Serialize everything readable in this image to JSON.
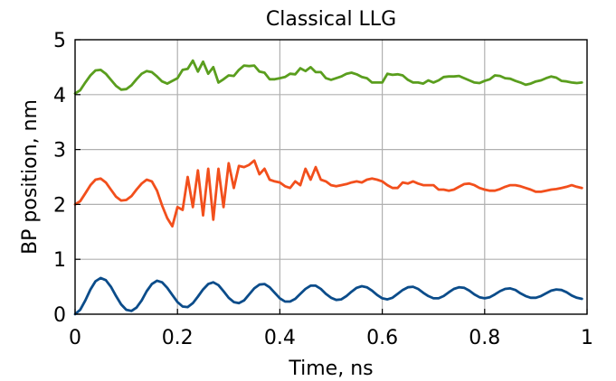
{
  "chart_data": {
    "type": "line",
    "title": "Classical LLG",
    "xlabel": "Time, ns",
    "ylabel": "BP position, nm",
    "xlim": [
      0,
      1
    ],
    "ylim": [
      0,
      5
    ],
    "xticks": [
      0,
      0.2,
      0.4,
      0.6,
      0.8,
      1
    ],
    "xtick_labels": [
      "0",
      "0.2",
      "0.4",
      "0.6",
      "0.8",
      "1"
    ],
    "yticks": [
      0,
      1,
      2,
      3,
      4,
      5
    ],
    "ytick_labels": [
      "0",
      "1",
      "2",
      "3",
      "4",
      "5"
    ],
    "grid": true,
    "series": [
      {
        "color": "#5a9e1e",
        "x": [
          0,
          0.01,
          0.02,
          0.03,
          0.04,
          0.05,
          0.06,
          0.07,
          0.08,
          0.09,
          0.1,
          0.11,
          0.12,
          0.13,
          0.14,
          0.15,
          0.16,
          0.17,
          0.18,
          0.19,
          0.2,
          0.21,
          0.22,
          0.23,
          0.24,
          0.25,
          0.26,
          0.27,
          0.28,
          0.29,
          0.3,
          0.31,
          0.32,
          0.33,
          0.34,
          0.35,
          0.36,
          0.37,
          0.38,
          0.39,
          0.4,
          0.41,
          0.42,
          0.43,
          0.44,
          0.45,
          0.46,
          0.47,
          0.48,
          0.49,
          0.5,
          0.51,
          0.52,
          0.53,
          0.54,
          0.55,
          0.56,
          0.57,
          0.58,
          0.59,
          0.6,
          0.61,
          0.62,
          0.63,
          0.64,
          0.65,
          0.66,
          0.67,
          0.68,
          0.69,
          0.7,
          0.71,
          0.72,
          0.73,
          0.74,
          0.75,
          0.76,
          0.77,
          0.78,
          0.79,
          0.8,
          0.81,
          0.82,
          0.83,
          0.84,
          0.85,
          0.86,
          0.87,
          0.88,
          0.89,
          0.9,
          0.91,
          0.92,
          0.93,
          0.94,
          0.95,
          0.96,
          0.97,
          0.98,
          0.99
        ],
        "y": [
          4.02,
          4.08,
          4.22,
          4.35,
          4.44,
          4.45,
          4.38,
          4.27,
          4.16,
          4.09,
          4.1,
          4.17,
          4.28,
          4.38,
          4.43,
          4.41,
          4.33,
          4.24,
          4.2,
          4.25,
          4.3,
          4.45,
          4.47,
          4.62,
          4.42,
          4.6,
          4.38,
          4.5,
          4.22,
          4.28,
          4.35,
          4.34,
          4.45,
          4.53,
          4.52,
          4.53,
          4.42,
          4.4,
          4.28,
          4.28,
          4.3,
          4.32,
          4.38,
          4.37,
          4.48,
          4.43,
          4.5,
          4.41,
          4.41,
          4.3,
          4.27,
          4.3,
          4.33,
          4.38,
          4.4,
          4.37,
          4.32,
          4.3,
          4.22,
          4.22,
          4.22,
          4.38,
          4.36,
          4.37,
          4.35,
          4.27,
          4.22,
          4.22,
          4.2,
          4.26,
          4.22,
          4.26,
          4.32,
          4.33,
          4.33,
          4.34,
          4.3,
          4.26,
          4.22,
          4.21,
          4.25,
          4.28,
          4.35,
          4.34,
          4.3,
          4.29,
          4.25,
          4.22,
          4.18,
          4.2,
          4.24,
          4.26,
          4.3,
          4.33,
          4.31,
          4.25,
          4.24,
          4.22,
          4.21,
          4.22
        ]
      },
      {
        "color": "#f24f1c",
        "x": [
          0,
          0.01,
          0.02,
          0.03,
          0.04,
          0.05,
          0.06,
          0.07,
          0.08,
          0.09,
          0.1,
          0.11,
          0.12,
          0.13,
          0.14,
          0.15,
          0.16,
          0.17,
          0.18,
          0.19,
          0.2,
          0.21,
          0.22,
          0.23,
          0.24,
          0.25,
          0.26,
          0.27,
          0.28,
          0.29,
          0.3,
          0.31,
          0.32,
          0.33,
          0.34,
          0.35,
          0.36,
          0.37,
          0.38,
          0.39,
          0.4,
          0.41,
          0.42,
          0.43,
          0.44,
          0.45,
          0.46,
          0.47,
          0.48,
          0.49,
          0.5,
          0.51,
          0.52,
          0.53,
          0.54,
          0.55,
          0.56,
          0.57,
          0.58,
          0.59,
          0.6,
          0.61,
          0.62,
          0.63,
          0.64,
          0.65,
          0.66,
          0.67,
          0.68,
          0.69,
          0.7,
          0.71,
          0.72,
          0.73,
          0.74,
          0.75,
          0.76,
          0.77,
          0.78,
          0.79,
          0.8,
          0.81,
          0.82,
          0.83,
          0.84,
          0.85,
          0.86,
          0.87,
          0.88,
          0.89,
          0.9,
          0.91,
          0.92,
          0.93,
          0.94,
          0.95,
          0.96,
          0.97,
          0.98,
          0.99
        ],
        "y": [
          2.0,
          2.06,
          2.2,
          2.35,
          2.45,
          2.47,
          2.4,
          2.27,
          2.14,
          2.07,
          2.08,
          2.15,
          2.27,
          2.38,
          2.45,
          2.42,
          2.25,
          1.98,
          1.75,
          1.6,
          1.95,
          1.9,
          2.5,
          1.95,
          2.62,
          1.8,
          2.65,
          1.72,
          2.65,
          1.95,
          2.75,
          2.3,
          2.7,
          2.68,
          2.72,
          2.8,
          2.55,
          2.65,
          2.45,
          2.42,
          2.4,
          2.33,
          2.3,
          2.42,
          2.35,
          2.65,
          2.45,
          2.68,
          2.45,
          2.42,
          2.35,
          2.33,
          2.35,
          2.37,
          2.4,
          2.42,
          2.4,
          2.45,
          2.47,
          2.45,
          2.42,
          2.35,
          2.3,
          2.3,
          2.4,
          2.38,
          2.42,
          2.38,
          2.35,
          2.35,
          2.35,
          2.27,
          2.27,
          2.25,
          2.27,
          2.32,
          2.37,
          2.38,
          2.35,
          2.3,
          2.27,
          2.25,
          2.25,
          2.28,
          2.32,
          2.35,
          2.35,
          2.33,
          2.3,
          2.27,
          2.23,
          2.23,
          2.25,
          2.27,
          2.28,
          2.3,
          2.32,
          2.35,
          2.32,
          2.3
        ]
      },
      {
        "color": "#0b4c8a",
        "x": [
          0,
          0.01,
          0.02,
          0.03,
          0.04,
          0.05,
          0.06,
          0.07,
          0.08,
          0.09,
          0.1,
          0.11,
          0.12,
          0.13,
          0.14,
          0.15,
          0.16,
          0.17,
          0.18,
          0.19,
          0.2,
          0.21,
          0.22,
          0.23,
          0.24,
          0.25,
          0.26,
          0.27,
          0.28,
          0.29,
          0.3,
          0.31,
          0.32,
          0.33,
          0.34,
          0.35,
          0.36,
          0.37,
          0.38,
          0.39,
          0.4,
          0.41,
          0.42,
          0.43,
          0.44,
          0.45,
          0.46,
          0.47,
          0.48,
          0.49,
          0.5,
          0.51,
          0.52,
          0.53,
          0.54,
          0.55,
          0.56,
          0.57,
          0.58,
          0.59,
          0.6,
          0.61,
          0.62,
          0.63,
          0.64,
          0.65,
          0.66,
          0.67,
          0.68,
          0.69,
          0.7,
          0.71,
          0.72,
          0.73,
          0.74,
          0.75,
          0.76,
          0.77,
          0.78,
          0.79,
          0.8,
          0.81,
          0.82,
          0.83,
          0.84,
          0.85,
          0.86,
          0.87,
          0.88,
          0.89,
          0.9,
          0.91,
          0.92,
          0.93,
          0.94,
          0.95,
          0.96,
          0.97,
          0.98,
          0.99
        ],
        "y": [
          0.0,
          0.08,
          0.25,
          0.45,
          0.6,
          0.66,
          0.62,
          0.5,
          0.33,
          0.18,
          0.08,
          0.06,
          0.12,
          0.25,
          0.42,
          0.55,
          0.61,
          0.58,
          0.48,
          0.35,
          0.22,
          0.14,
          0.13,
          0.2,
          0.32,
          0.45,
          0.55,
          0.58,
          0.53,
          0.42,
          0.3,
          0.22,
          0.2,
          0.25,
          0.36,
          0.47,
          0.54,
          0.55,
          0.49,
          0.39,
          0.29,
          0.23,
          0.23,
          0.28,
          0.37,
          0.46,
          0.52,
          0.52,
          0.46,
          0.37,
          0.3,
          0.26,
          0.27,
          0.33,
          0.41,
          0.48,
          0.51,
          0.49,
          0.43,
          0.35,
          0.29,
          0.27,
          0.3,
          0.37,
          0.44,
          0.49,
          0.5,
          0.46,
          0.39,
          0.33,
          0.29,
          0.29,
          0.33,
          0.4,
          0.46,
          0.49,
          0.48,
          0.43,
          0.36,
          0.31,
          0.29,
          0.31,
          0.36,
          0.42,
          0.46,
          0.47,
          0.44,
          0.38,
          0.33,
          0.3,
          0.3,
          0.33,
          0.38,
          0.43,
          0.45,
          0.44,
          0.4,
          0.34,
          0.3,
          0.28
        ]
      }
    ]
  }
}
